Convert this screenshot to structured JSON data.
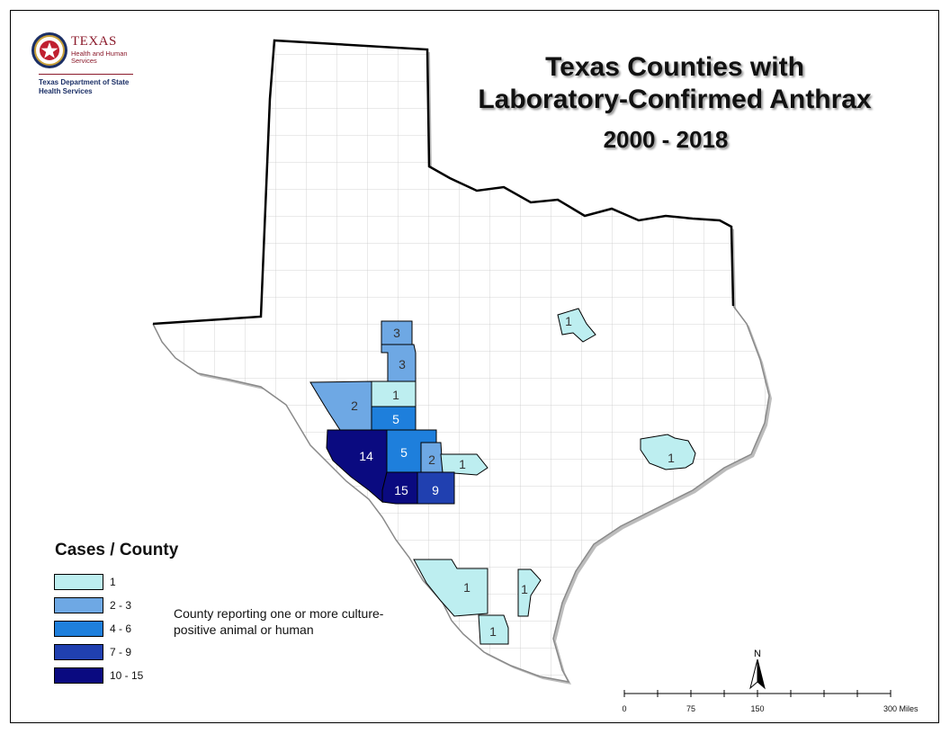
{
  "title": {
    "line1": "Texas Counties with",
    "line2": "Laboratory-Confirmed Anthrax",
    "line3": "2000 - 2018"
  },
  "logo": {
    "org_name": "TEXAS",
    "org_subtitle": "Health and Human Services",
    "department": "Texas Department of State Health Services"
  },
  "legend": {
    "title": "Cases / County",
    "items": [
      {
        "label": "1",
        "color": "#bdeef0"
      },
      {
        "label": "2 - 3",
        "color": "#6ea8e4"
      },
      {
        "label": "4 - 6",
        "color": "#1e7fdc"
      },
      {
        "label": "7 - 9",
        "color": "#2040b0"
      },
      {
        "label": "10 - 15",
        "color": "#0a0a80"
      }
    ]
  },
  "note": "County reporting one or more culture-positive animal or human",
  "north_label": "N",
  "scale_bar": {
    "ticks": [
      "0",
      "75",
      "150",
      "300 Miles"
    ],
    "values_miles": [
      0,
      75,
      150,
      300
    ]
  },
  "counties": [
    {
      "count": "3",
      "color": "#6ea8e4"
    },
    {
      "count": "3",
      "color": "#6ea8e4"
    },
    {
      "count": "1",
      "color": "#bdeef0"
    },
    {
      "count": "2",
      "color": "#6ea8e4"
    },
    {
      "count": "5",
      "color": "#1e7fdc"
    },
    {
      "count": "14",
      "color": "#0a0a80"
    },
    {
      "count": "5",
      "color": "#1e7fdc"
    },
    {
      "count": "2",
      "color": "#6ea8e4"
    },
    {
      "count": "1",
      "color": "#bdeef0"
    },
    {
      "count": "15",
      "color": "#0a0a80"
    },
    {
      "count": "9",
      "color": "#2040b0"
    },
    {
      "count": "1",
      "color": "#bdeef0"
    },
    {
      "count": "1",
      "color": "#bdeef0"
    },
    {
      "count": "1",
      "color": "#bdeef0"
    },
    {
      "count": "1",
      "color": "#bdeef0"
    },
    {
      "count": "1",
      "color": "#bdeef0"
    }
  ]
}
